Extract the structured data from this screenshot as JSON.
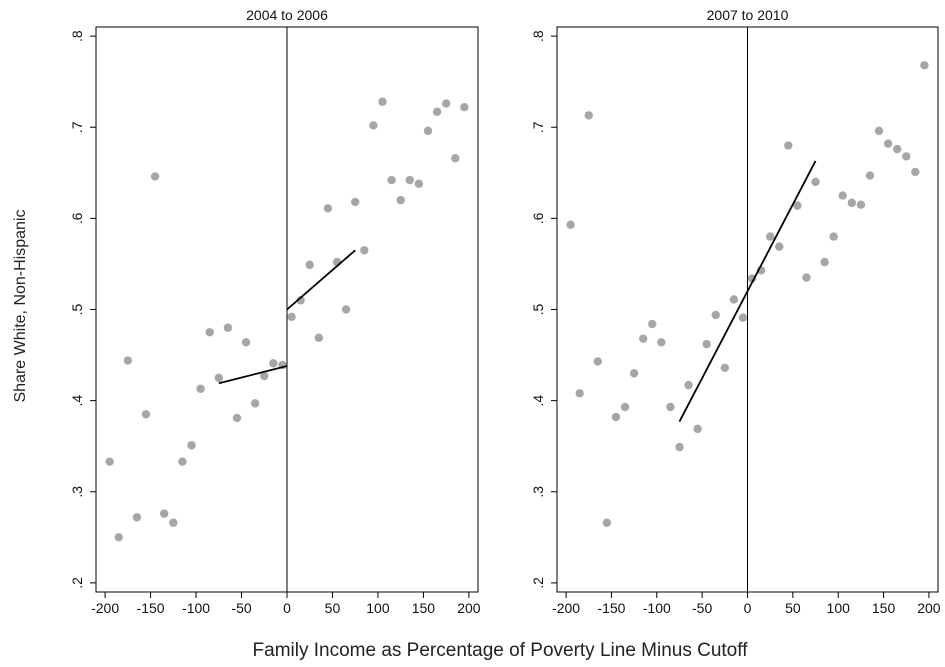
{
  "figure": {
    "ylabel": "Share White, Non-Hispanic",
    "xlabel": "Family Income as Percentage of Poverty Line Minus Cutoff"
  },
  "chart_data": [
    {
      "type": "scatter",
      "title": "2004 to 2006",
      "xlim": [
        -210,
        210
      ],
      "ylim": [
        0.19,
        0.81
      ],
      "xticks": [
        -200,
        -150,
        -100,
        -50,
        0,
        50,
        100,
        150,
        200
      ],
      "xtick_labels": [
        "-200",
        "-150",
        "-100",
        "-50",
        "0",
        "50",
        "100",
        "150",
        "200"
      ],
      "yticks": [
        0.2,
        0.3,
        0.4,
        0.5,
        0.6,
        0.7,
        0.8
      ],
      "ytick_labels": [
        ".2",
        ".3",
        ".4",
        ".5",
        ".6",
        ".7",
        ".8"
      ],
      "cutoff_x": 0,
      "points": [
        [
          -195,
          0.333
        ],
        [
          -185,
          0.25
        ],
        [
          -175,
          0.444
        ],
        [
          -165,
          0.272
        ],
        [
          -155,
          0.385
        ],
        [
          -145,
          0.646
        ],
        [
          -135,
          0.276
        ],
        [
          -125,
          0.266
        ],
        [
          -115,
          0.333
        ],
        [
          -105,
          0.351
        ],
        [
          -95,
          0.413
        ],
        [
          -85,
          0.475
        ],
        [
          -75,
          0.425
        ],
        [
          -65,
          0.48
        ],
        [
          -55,
          0.381
        ],
        [
          -45,
          0.464
        ],
        [
          -35,
          0.397
        ],
        [
          -25,
          0.427
        ],
        [
          -15,
          0.441
        ],
        [
          -5,
          0.439
        ],
        [
          5,
          0.492
        ],
        [
          15,
          0.51
        ],
        [
          25,
          0.549
        ],
        [
          35,
          0.469
        ],
        [
          45,
          0.611
        ],
        [
          55,
          0.552
        ],
        [
          65,
          0.5
        ],
        [
          75,
          0.618
        ],
        [
          85,
          0.565
        ],
        [
          95,
          0.702
        ],
        [
          105,
          0.728
        ],
        [
          115,
          0.642
        ],
        [
          125,
          0.62
        ],
        [
          135,
          0.642
        ],
        [
          145,
          0.638
        ],
        [
          155,
          0.696
        ],
        [
          165,
          0.717
        ],
        [
          175,
          0.726
        ],
        [
          185,
          0.666
        ],
        [
          195,
          0.722
        ]
      ],
      "fit_lines": [
        [
          [
            -75,
            0.419
          ],
          [
            0,
            0.438
          ]
        ],
        [
          [
            0,
            0.5
          ],
          [
            75,
            0.565
          ]
        ]
      ],
      "colors": {
        "points": "#a6a6a6",
        "lines": "#000000"
      }
    },
    {
      "type": "scatter",
      "title": "2007 to 2010",
      "xlim": [
        -210,
        210
      ],
      "ylim": [
        0.19,
        0.81
      ],
      "xticks": [
        -200,
        -150,
        -100,
        -50,
        0,
        50,
        100,
        150,
        200
      ],
      "xtick_labels": [
        "-200",
        "-150",
        "-100",
        "-50",
        "0",
        "50",
        "100",
        "150",
        "200"
      ],
      "yticks": [
        0.2,
        0.3,
        0.4,
        0.5,
        0.6,
        0.7,
        0.8
      ],
      "ytick_labels": [
        ".2",
        ".3",
        ".4",
        ".5",
        ".6",
        ".7",
        ".8"
      ],
      "cutoff_x": 0,
      "points": [
        [
          -195,
          0.593
        ],
        [
          -185,
          0.408
        ],
        [
          -175,
          0.713
        ],
        [
          -165,
          0.443
        ],
        [
          -155,
          0.266
        ],
        [
          -145,
          0.382
        ],
        [
          -135,
          0.393
        ],
        [
          -125,
          0.43
        ],
        [
          -115,
          0.468
        ],
        [
          -105,
          0.484
        ],
        [
          -95,
          0.464
        ],
        [
          -85,
          0.393
        ],
        [
          -75,
          0.349
        ],
        [
          -65,
          0.417
        ],
        [
          -55,
          0.369
        ],
        [
          -45,
          0.462
        ],
        [
          -35,
          0.494
        ],
        [
          -25,
          0.436
        ],
        [
          -15,
          0.511
        ],
        [
          -5,
          0.491
        ],
        [
          5,
          0.534
        ],
        [
          15,
          0.543
        ],
        [
          25,
          0.58
        ],
        [
          35,
          0.569
        ],
        [
          45,
          0.68
        ],
        [
          55,
          0.614
        ],
        [
          65,
          0.535
        ],
        [
          75,
          0.64
        ],
        [
          85,
          0.552
        ],
        [
          95,
          0.58
        ],
        [
          105,
          0.625
        ],
        [
          115,
          0.617
        ],
        [
          125,
          0.615
        ],
        [
          135,
          0.647
        ],
        [
          145,
          0.696
        ],
        [
          155,
          0.682
        ],
        [
          165,
          0.676
        ],
        [
          175,
          0.668
        ],
        [
          185,
          0.651
        ],
        [
          195,
          0.768
        ]
      ],
      "fit_lines": [
        [
          [
            -75,
            0.377
          ],
          [
            75,
            0.663
          ]
        ]
      ],
      "colors": {
        "points": "#a6a6a6",
        "lines": "#000000"
      }
    }
  ]
}
